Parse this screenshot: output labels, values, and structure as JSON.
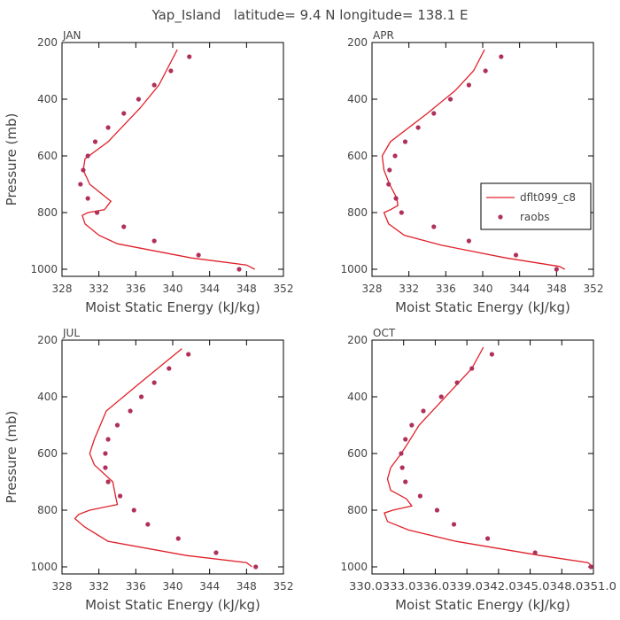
{
  "title": "Yap_Island   latitude= 9.4 N longitude= 138.1 E",
  "colors": {
    "model": "#e0202a",
    "obs": "#b0305a",
    "axis": "#000000",
    "text": "#444444"
  },
  "chart_data": [
    {
      "type": "line",
      "panel": "JAN",
      "xlabel": "Moist Static Energy (kJ/kg)",
      "ylabel": "Pressure (mb)",
      "xlim": [
        328,
        352
      ],
      "ylim": [
        1025,
        200
      ],
      "xticks": [
        328,
        332,
        336,
        340,
        344,
        348,
        352
      ],
      "xtick_labels": [
        "328",
        "332",
        "336",
        "340",
        "344",
        "348",
        "352"
      ],
      "yticks": [
        200,
        400,
        600,
        800,
        1000
      ],
      "ytick_labels": [
        "200",
        "400",
        "600",
        "800",
        "1000"
      ],
      "series": [
        {
          "name": "dflt099_c8",
          "kind": "line",
          "points": [
            [
              348.9,
              1000
            ],
            [
              348.0,
              985
            ],
            [
              342.0,
              960
            ],
            [
              334.0,
              910
            ],
            [
              332.0,
              880
            ],
            [
              330.5,
              840
            ],
            [
              330.2,
              810
            ],
            [
              330.8,
              800
            ],
            [
              332.6,
              790
            ],
            [
              333.3,
              760
            ],
            [
              331.0,
              700
            ],
            [
              330.3,
              650
            ],
            [
              330.5,
              610
            ],
            [
              333.0,
              550
            ],
            [
              336.5,
              430
            ],
            [
              338.5,
              350
            ],
            [
              340.5,
              225
            ]
          ]
        },
        {
          "name": "raobs",
          "kind": "scatter",
          "points": [
            [
              347.2,
              1000
            ],
            [
              342.8,
              950
            ],
            [
              338.0,
              900
            ],
            [
              334.7,
              850
            ],
            [
              331.8,
              800
            ],
            [
              330.8,
              750
            ],
            [
              330.0,
              700
            ],
            [
              330.3,
              650
            ],
            [
              330.8,
              600
            ],
            [
              331.6,
              550
            ],
            [
              333.0,
              500
            ],
            [
              334.7,
              450
            ],
            [
              336.3,
              400
            ],
            [
              338.0,
              350
            ],
            [
              339.8,
              300
            ],
            [
              341.8,
              250
            ]
          ]
        }
      ]
    },
    {
      "type": "line",
      "panel": "APR",
      "xlabel": "Moist Static Energy (kJ/kg)",
      "ylabel": "",
      "xlim": [
        328,
        352
      ],
      "ylim": [
        1025,
        200
      ],
      "xticks": [
        328,
        332,
        336,
        340,
        344,
        348,
        352
      ],
      "xtick_labels": [
        "328",
        "332",
        "336",
        "340",
        "344",
        "348",
        "352"
      ],
      "yticks": [
        200,
        400,
        600,
        800,
        1000
      ],
      "ytick_labels": [
        "200",
        "400",
        "600",
        "800",
        "1000"
      ],
      "legend": {
        "location": "right",
        "entries": [
          "dflt099_c8",
          "raobs"
        ]
      },
      "series": [
        {
          "name": "dflt099_c8",
          "kind": "line",
          "points": [
            [
              348.9,
              1000
            ],
            [
              348.3,
              990
            ],
            [
              342.5,
              960
            ],
            [
              335.5,
              915
            ],
            [
              331.5,
              880
            ],
            [
              329.8,
              840
            ],
            [
              329.3,
              800
            ],
            [
              330.0,
              790
            ],
            [
              330.8,
              775
            ],
            [
              330.7,
              750
            ],
            [
              329.9,
              700
            ],
            [
              329.3,
              650
            ],
            [
              329.1,
              600
            ],
            [
              330.0,
              550
            ],
            [
              334.0,
              450
            ],
            [
              337.0,
              370
            ],
            [
              339.0,
              300
            ],
            [
              340.2,
              225
            ]
          ]
        },
        {
          "name": "raobs",
          "kind": "scatter",
          "points": [
            [
              348.0,
              1000
            ],
            [
              343.6,
              950
            ],
            [
              338.5,
              900
            ],
            [
              334.7,
              850
            ],
            [
              331.2,
              800
            ],
            [
              330.6,
              750
            ],
            [
              329.8,
              700
            ],
            [
              329.9,
              650
            ],
            [
              330.5,
              600
            ],
            [
              331.6,
              550
            ],
            [
              333.0,
              500
            ],
            [
              334.7,
              450
            ],
            [
              336.5,
              400
            ],
            [
              338.5,
              350
            ],
            [
              340.3,
              300
            ],
            [
              342.0,
              250
            ]
          ]
        }
      ]
    },
    {
      "type": "line",
      "panel": "JUL",
      "xlabel": "Moist Static Energy (kJ/kg)",
      "ylabel": "Pressure (mb)",
      "xlim": [
        328,
        352
      ],
      "ylim": [
        1025,
        200
      ],
      "xticks": [
        328,
        332,
        336,
        340,
        344,
        348,
        352
      ],
      "xtick_labels": [
        "328",
        "332",
        "336",
        "340",
        "344",
        "348",
        "352"
      ],
      "yticks": [
        200,
        400,
        600,
        800,
        1000
      ],
      "ytick_labels": [
        "200",
        "400",
        "600",
        "800",
        "1000"
      ],
      "series": [
        {
          "name": "dflt099_c8",
          "kind": "line",
          "points": [
            [
              348.6,
              1000
            ],
            [
              348.0,
              985
            ],
            [
              341.5,
              960
            ],
            [
              333.0,
              910
            ],
            [
              330.5,
              860
            ],
            [
              329.4,
              830
            ],
            [
              329.8,
              815
            ],
            [
              331.0,
              800
            ],
            [
              334.0,
              780
            ],
            [
              333.8,
              750
            ],
            [
              333.5,
              700
            ],
            [
              331.5,
              640
            ],
            [
              331.0,
              600
            ],
            [
              331.5,
              550
            ],
            [
              332.8,
              450
            ],
            [
              336.5,
              350
            ],
            [
              339.5,
              270
            ],
            [
              341.0,
              230
            ]
          ]
        },
        {
          "name": "raobs",
          "kind": "scatter",
          "points": [
            [
              349.0,
              1000
            ],
            [
              344.7,
              950
            ],
            [
              340.6,
              900
            ],
            [
              337.3,
              850
            ],
            [
              335.8,
              800
            ],
            [
              334.3,
              750
            ],
            [
              333.0,
              700
            ],
            [
              332.7,
              650
            ],
            [
              332.7,
              600
            ],
            [
              333.0,
              550
            ],
            [
              334.0,
              500
            ],
            [
              335.4,
              450
            ],
            [
              336.6,
              400
            ],
            [
              338.0,
              350
            ],
            [
              339.6,
              300
            ],
            [
              341.7,
              250
            ]
          ]
        }
      ]
    },
    {
      "type": "line",
      "panel": "OCT",
      "xlabel": "Moist Static Energy (kJ/kg)",
      "ylabel": "",
      "xlim": [
        330.03,
        351.03
      ],
      "ylim": [
        1025,
        200
      ],
      "xticks": [
        330.03,
        333.03,
        336.03,
        339.03,
        342.03,
        345.03,
        348.03,
        351.03
      ],
      "xtick_labels": [
        "330.0",
        "333.0",
        "336.0",
        "339.0",
        "342.0",
        "345.0",
        "348.0",
        "351.0"
      ],
      "xtick_label_text": "330.0333.0336.0339.0342.0345.0348.0351.0",
      "yticks": [
        200,
        400,
        600,
        800,
        1000
      ],
      "ytick_labels": [
        "200",
        "400",
        "600",
        "800",
        "1000"
      ],
      "series": [
        {
          "name": "dflt099_c8",
          "kind": "line",
          "points": [
            [
              351.0,
              1000
            ],
            [
              350.5,
              985
            ],
            [
              346.0,
              960
            ],
            [
              338.0,
              910
            ],
            [
              333.5,
              870
            ],
            [
              331.5,
              840
            ],
            [
              331.2,
              810
            ],
            [
              332.0,
              800
            ],
            [
              333.8,
              785
            ],
            [
              333.3,
              760
            ],
            [
              331.8,
              730
            ],
            [
              331.5,
              690
            ],
            [
              331.8,
              650
            ],
            [
              332.8,
              600
            ],
            [
              333.5,
              560
            ],
            [
              334.5,
              500
            ],
            [
              336.5,
              420
            ],
            [
              338.0,
              360
            ],
            [
              339.5,
              300
            ],
            [
              340.6,
              225
            ]
          ]
        },
        {
          "name": "raobs",
          "kind": "scatter",
          "points": [
            [
              350.8,
              1000
            ],
            [
              345.5,
              950
            ],
            [
              341.0,
              900
            ],
            [
              337.8,
              850
            ],
            [
              336.2,
              800
            ],
            [
              334.6,
              750
            ],
            [
              333.2,
              700
            ],
            [
              332.9,
              650
            ],
            [
              332.8,
              600
            ],
            [
              333.2,
              550
            ],
            [
              333.8,
              500
            ],
            [
              334.9,
              450
            ],
            [
              336.6,
              400
            ],
            [
              338.1,
              350
            ],
            [
              339.5,
              300
            ],
            [
              341.4,
              250
            ]
          ]
        }
      ]
    }
  ]
}
